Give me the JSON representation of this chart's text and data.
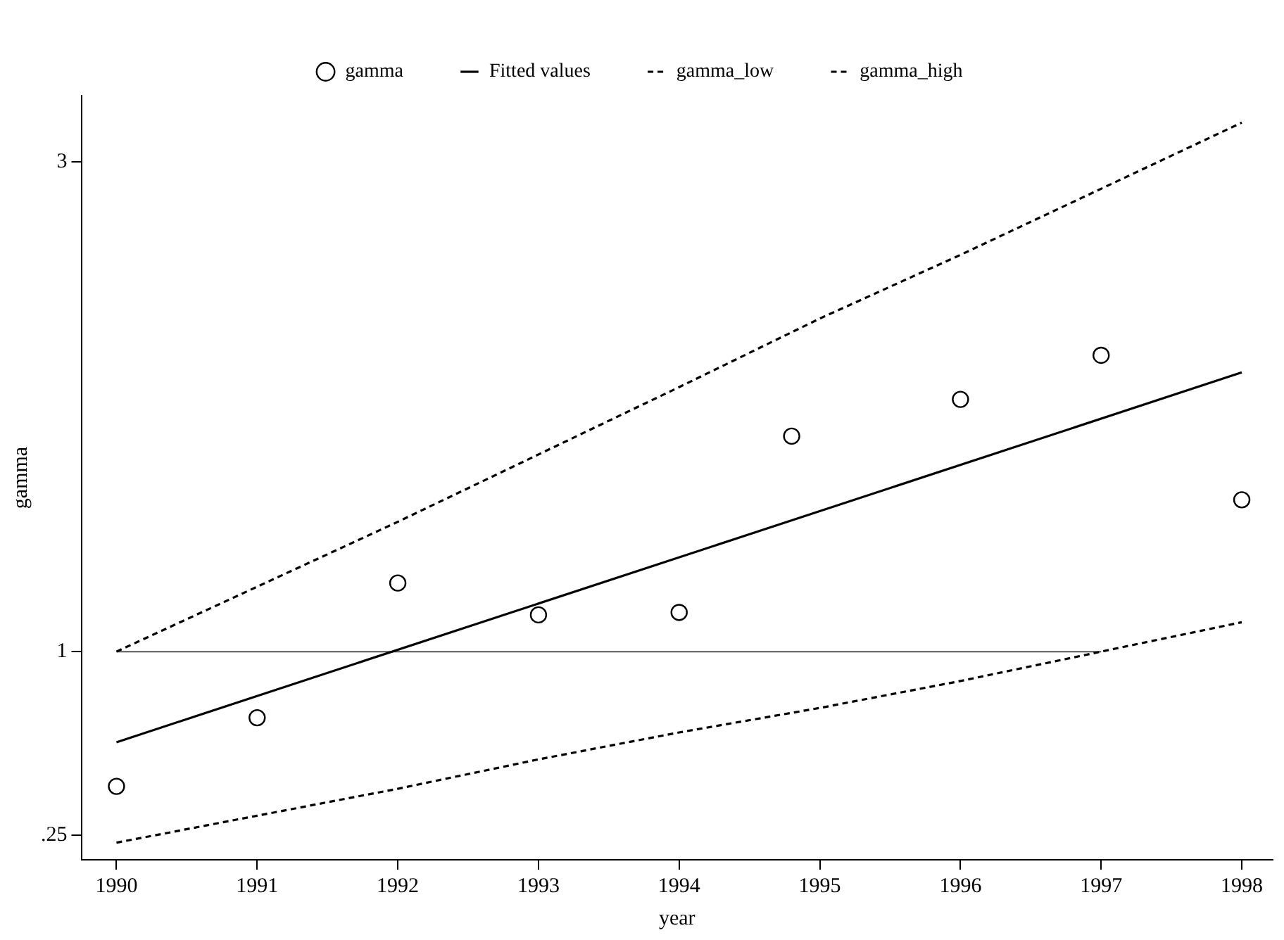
{
  "chart_data": {
    "type": "line",
    "xlabel": "year",
    "ylabel": "gamma",
    "legend": "top",
    "grid": false,
    "xlim": [
      1989.75,
      1998.22
    ],
    "xticks": [
      1990,
      1991,
      1992,
      1993,
      1994,
      1995,
      1996,
      1997,
      1998
    ],
    "ylim": [
      0.15,
      3.27
    ],
    "yticks": [
      {
        "value": 0.25,
        "label": ".25"
      },
      1,
      3
    ],
    "series": [
      {
        "name": "gamma",
        "type": "scatter",
        "marker": "circle",
        "color": "#000000",
        "x": [
          1990,
          1991,
          1992,
          1993,
          1994,
          1994.8,
          1996,
          1997,
          1998
        ],
        "values": [
          0.45,
          0.73,
          1.28,
          1.15,
          1.16,
          1.88,
          2.03,
          2.21,
          1.62
        ]
      },
      {
        "name": "Fitted values",
        "type": "line",
        "line_style": "solid",
        "color": "#000000",
        "x": [
          1990,
          1998
        ],
        "values": [
          0.63,
          2.14
        ]
      },
      {
        "name": "gamma_low",
        "type": "line",
        "line_style": "dashed",
        "color": "#000000",
        "x": [
          1990,
          1991,
          1992,
          1993,
          1994,
          1995,
          1996,
          1997,
          1998
        ],
        "values": [
          0.22,
          0.33,
          0.44,
          0.56,
          0.67,
          0.77,
          0.88,
          1.0,
          1.12
        ]
      },
      {
        "name": "gamma_high",
        "type": "line",
        "line_style": "dashed",
        "color": "#000000",
        "x": [
          1990,
          1992,
          1994,
          1995,
          1996,
          1998
        ],
        "values": [
          1.0,
          1.53,
          2.08,
          2.36,
          2.62,
          3.16
        ]
      },
      {
        "type": "line",
        "line_style": "solid",
        "color": "#555555",
        "x": [
          1990,
          1997
        ],
        "values": [
          1,
          1
        ]
      }
    ]
  }
}
